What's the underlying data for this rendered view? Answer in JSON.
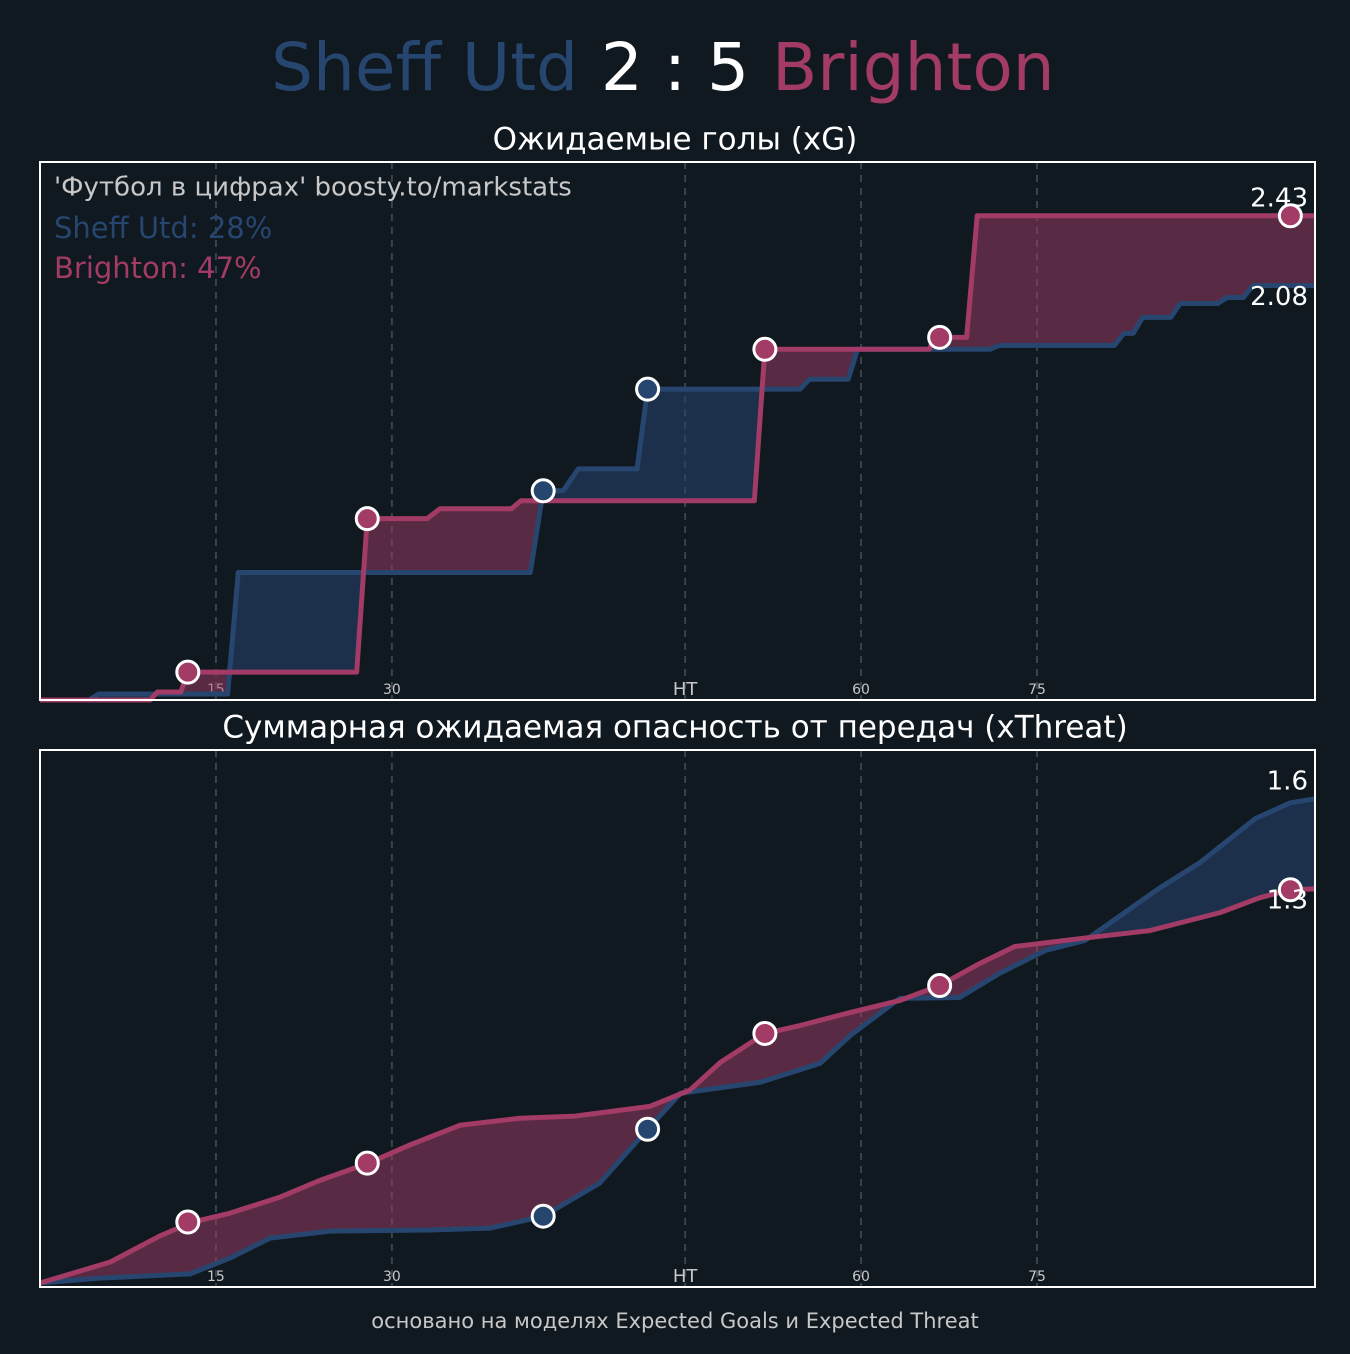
{
  "header": {
    "home": "Sheff Utd",
    "score": "2 : 5",
    "away": "Brighton"
  },
  "footer": "основано на моделях Expected Goals и Expected Threat",
  "chart_data": [
    {
      "type": "line",
      "title": "Ожидаемые голы (xG)",
      "annotation": "'Футбол в цифрах' boosty.to/markstats",
      "legend": [
        "Sheff Utd: 28%",
        "Brighton: 47%"
      ],
      "xlim": [
        0,
        108.7
      ],
      "ylim": [
        0,
        2.7
      ],
      "xticks": [
        15,
        30,
        {
          "value": 55,
          "label": "HT"
        },
        {
          "value": 70,
          "label": "60"
        },
        {
          "value": 85,
          "label": "75"
        }
      ],
      "grid": true,
      "series": [
        {
          "color": "#27466f",
          "end_label": "2.08",
          "x": [
            0,
            4.2,
            5.0,
            16.0,
            16.9,
            41.8,
            42.9,
            44.6,
            45.9,
            50.9,
            51.8,
            64.8,
            65.6,
            68.9,
            69.7,
            81.0,
            81.8,
            91.6,
            92.4,
            93.2,
            94.0,
            96.4,
            97.2,
            100.4,
            101.2,
            102.6,
            103.4,
            108.7
          ],
          "values": [
            0,
            0,
            0.03,
            0.03,
            0.64,
            0.64,
            1.05,
            1.05,
            1.16,
            1.16,
            1.56,
            1.56,
            1.61,
            1.61,
            1.76,
            1.76,
            1.78,
            1.78,
            1.84,
            1.84,
            1.92,
            1.92,
            1.99,
            1.99,
            2.02,
            2.02,
            2.08,
            2.08
          ],
          "goals": {
            "x": [
              42.9,
              51.8
            ],
            "values": [
              1.05,
              1.56
            ]
          }
        },
        {
          "color": "#a23b65",
          "end_label": "2.43",
          "x": [
            0,
            9.4,
            10.0,
            12.0,
            12.6,
            27.0,
            27.9,
            33.0,
            34.1,
            40.2,
            41.0,
            60.9,
            61.8,
            75.8,
            76.3,
            79.0,
            79.9,
            108.7
          ],
          "values": [
            0,
            0,
            0.04,
            0.04,
            0.14,
            0.14,
            0.91,
            0.91,
            0.96,
            0.96,
            1.0,
            1.0,
            1.76,
            1.76,
            1.82,
            1.82,
            2.43,
            2.43
          ],
          "goals": {
            "x": [
              12.6,
              27.9,
              61.8,
              76.7,
              106.6
            ],
            "values": [
              0.14,
              0.91,
              1.76,
              1.82,
              2.43
            ]
          }
        }
      ]
    },
    {
      "type": "line",
      "title": "Суммарная ожидаемая опасность от передач (xThreat)",
      "xlim": [
        0,
        108.7
      ],
      "ylim": [
        0,
        1.76
      ],
      "xticks": [
        15,
        30,
        {
          "value": 55,
          "label": "HT"
        },
        {
          "value": 70,
          "label": "60"
        },
        {
          "value": 85,
          "label": "75"
        }
      ],
      "grid": true,
      "series": [
        {
          "color": "#27466f",
          "end_label": "1.6",
          "x": [
            0,
            5.1,
            12.8,
            16.2,
            19.6,
            24.7,
            33.2,
            38.4,
            42.9,
            47.7,
            51.8,
            54.6,
            61.4,
            66.5,
            69.1,
            73.3,
            78.4,
            81.8,
            85.7,
            89.1,
            92.1,
            95.5,
            98.9,
            103.6,
            106.6,
            108.7
          ],
          "values": [
            0.013,
            0.029,
            0.043,
            0.095,
            0.16,
            0.183,
            0.187,
            0.193,
            0.232,
            0.34,
            0.517,
            0.635,
            0.671,
            0.733,
            0.825,
            0.946,
            0.949,
            1.028,
            1.103,
            1.136,
            1.217,
            1.309,
            1.391,
            1.535,
            1.587,
            1.6
          ],
          "goals": {
            "x": [
              42.9,
              51.8
            ],
            "values": [
              0.232,
              0.517
            ]
          }
        },
        {
          "color": "#a23b65",
          "end_label": "1.3",
          "x": [
            0,
            6.0,
            10.2,
            13.0,
            16.2,
            20.5,
            23.9,
            28.0,
            31.5,
            35.8,
            40.9,
            45.6,
            52.0,
            55.4,
            58.0,
            61.8,
            64.8,
            69.1,
            73.3,
            76.7,
            80.1,
            83.1,
            88.7,
            94.6,
            100.6,
            104.0,
            106.6,
            108.7
          ],
          "values": [
            0.013,
            0.082,
            0.167,
            0.213,
            0.242,
            0.295,
            0.35,
            0.406,
            0.465,
            0.53,
            0.553,
            0.56,
            0.592,
            0.645,
            0.736,
            0.831,
            0.857,
            0.9,
            0.939,
            0.988,
            1.06,
            1.116,
            1.142,
            1.168,
            1.227,
            1.276,
            1.302,
            1.305
          ],
          "goals": {
            "x": [
              12.6,
              27.9,
              61.8,
              76.7,
              106.6
            ],
            "values": [
              0.213,
              0.406,
              0.831,
              0.988,
              1.302
            ]
          }
        }
      ]
    }
  ]
}
